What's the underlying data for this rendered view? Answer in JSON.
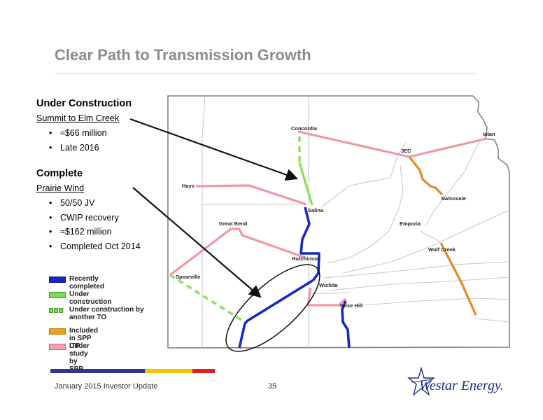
{
  "title": "Clear Path to Transmission Growth",
  "under_construction": {
    "heading": "Under Construction",
    "project": "Summit to Elm Creek",
    "bullets": [
      "≈$66 million",
      "Late 2016"
    ]
  },
  "complete": {
    "heading": "Complete",
    "project": "Prairie Wind",
    "bullets": [
      "50/50 JV",
      "CWIP recovery",
      "≈$162 million",
      "Completed Oct 2014"
    ]
  },
  "legend": [
    {
      "label": "Recently completed",
      "style": "blue"
    },
    {
      "label": "Under construction",
      "style": "green"
    },
    {
      "label": "Under construction by another TO",
      "style": "green-dashed"
    },
    {
      "label": "Included in SPP ITP",
      "style": "orange"
    },
    {
      "label": "Under study by SPP",
      "style": "pink"
    }
  ],
  "map": {
    "cities": {
      "concordia": "Concordia",
      "iatan": "Iatan",
      "jec": "JEC",
      "hays": "Hays",
      "swissvale": "Swissvale",
      "salina": "Salina",
      "great_bend": "Great Bend",
      "emporia": "Emporia",
      "wolf_creek": "Wolf Creek",
      "hutchinson": "Hutchinson",
      "spearville": "Spearville",
      "wichita": "Wichita",
      "rose_hill": "Rose Hill"
    },
    "colors": {
      "recently_completed": "#1428c8",
      "under_construction": "#8ee05a",
      "included_spp_itp": "#e8891e",
      "under_study_spp": "#ef98a4",
      "state_border": "#808080",
      "county_lines": "#c8c8c8"
    }
  },
  "footer": {
    "left": "January 2015 Investor Update",
    "page": "35",
    "logo": "Westar Energy.",
    "bar_colors": [
      "#2b3a8f",
      "#f5c400",
      "#e02020"
    ]
  }
}
